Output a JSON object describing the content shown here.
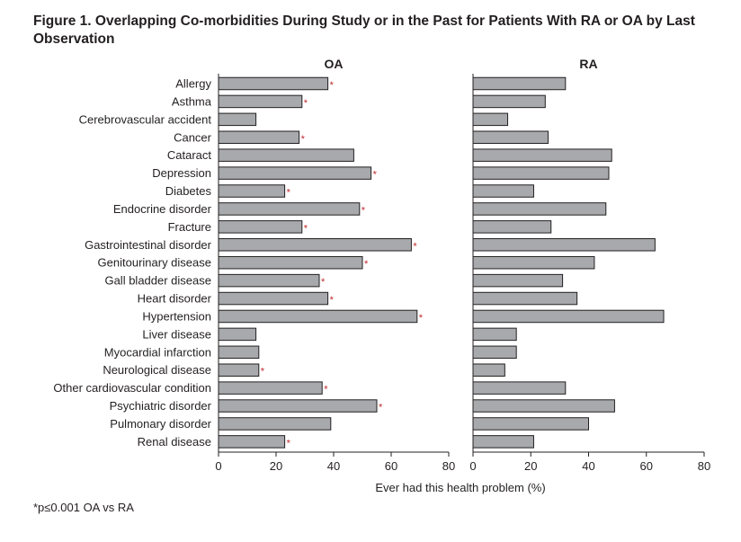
{
  "title": "Figure 1. Overlapping Co-morbidities During Study or in the Past for Patients With RA or OA by Last Observation",
  "footnote": "*p≤0.001 OA vs RA",
  "chart_data": {
    "type": "bar",
    "orientation": "horizontal",
    "xlabel": "Ever had this health problem (%)",
    "xlim": [
      0,
      80
    ],
    "xticks": [
      0,
      20,
      40,
      60,
      80
    ],
    "bar_color": "#a7a9ac",
    "star_color": "#c1272d",
    "categories": [
      "Allergy",
      "Asthma",
      "Cerebrovascular accident",
      "Cancer",
      "Cataract",
      "Depression",
      "Diabetes",
      "Endocrine disorder",
      "Fracture",
      "Gastrointestinal disorder",
      "Genitourinary disease",
      "Gall bladder disease",
      "Heart disorder",
      "Hypertension",
      "Liver disease",
      "Myocardial infarction",
      "Neurological disease",
      "Other cardiovascular condition",
      "Psychiatric disorder",
      "Pulmonary disorder",
      "Renal disease"
    ],
    "series": [
      {
        "name": "OA",
        "values": [
          38,
          29,
          13,
          28,
          47,
          53,
          23,
          49,
          29,
          67,
          50,
          35,
          38,
          69,
          13,
          14,
          14,
          36,
          55,
          39,
          23
        ],
        "significant": [
          true,
          true,
          false,
          true,
          false,
          true,
          true,
          true,
          true,
          true,
          true,
          true,
          true,
          true,
          false,
          false,
          true,
          true,
          true,
          false,
          true
        ]
      },
      {
        "name": "RA",
        "values": [
          32,
          25,
          12,
          26,
          48,
          47,
          21,
          46,
          27,
          63,
          42,
          31,
          36,
          66,
          15,
          15,
          11,
          32,
          49,
          40,
          21
        ]
      }
    ],
    "significance_marker": "*"
  }
}
